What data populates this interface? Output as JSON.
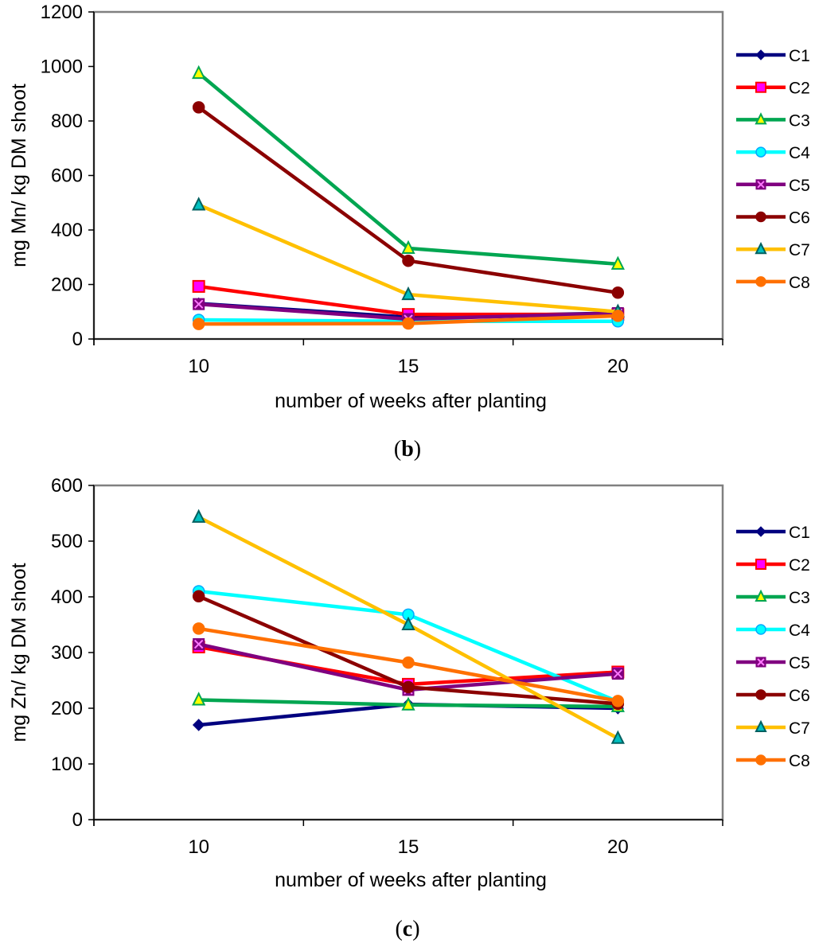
{
  "chart_data": [
    {
      "type": "line",
      "panel_label": {
        "open": "(",
        "letter": "b",
        "close": ")"
      },
      "title": "",
      "xlabel": "number of weeks after planting",
      "ylabel": "mg Mn/ kg DM shoot",
      "x": [
        10,
        15,
        20
      ],
      "xlim": [
        7.5,
        22.5
      ],
      "ylim": [
        0,
        1200
      ],
      "yticks": [
        0,
        200,
        400,
        600,
        800,
        1000,
        1200
      ],
      "xticks": [
        10,
        15,
        20
      ],
      "legend_position": "right",
      "series": [
        {
          "name": "C1",
          "values": [
            130,
            80,
            95
          ],
          "color": "#00007f",
          "marker": "diamond"
        },
        {
          "name": "C2",
          "values": [
            193,
            90,
            90
          ],
          "color": "#ff0000",
          "marker": "square"
        },
        {
          "name": "C3",
          "values": [
            975,
            333,
            275
          ],
          "color": "#00a651",
          "marker": "triangle"
        },
        {
          "name": "C4",
          "values": [
            70,
            65,
            65
          ],
          "color": "#00ffff",
          "marker": "circle"
        },
        {
          "name": "C5",
          "values": [
            128,
            73,
            95
          ],
          "color": "#800080",
          "marker": "x-square"
        },
        {
          "name": "C6",
          "values": [
            850,
            287,
            170
          ],
          "color": "#8b0000",
          "marker": "circle"
        },
        {
          "name": "C7",
          "values": [
            492,
            163,
            100
          ],
          "color": "#ffc000",
          "marker": "triangle"
        },
        {
          "name": "C8",
          "values": [
            55,
            57,
            85
          ],
          "color": "#ff7000",
          "marker": "circle"
        }
      ]
    },
    {
      "type": "line",
      "panel_label": {
        "open": "(",
        "letter": "c",
        "close": ")"
      },
      "title": "",
      "xlabel": "number of weeks after planting",
      "ylabel": "mg Zn/ kg DM shoot",
      "x": [
        10,
        15,
        20
      ],
      "xlim": [
        7.5,
        22.5
      ],
      "ylim": [
        0,
        600
      ],
      "yticks": [
        0,
        100,
        200,
        300,
        400,
        500,
        600
      ],
      "xticks": [
        10,
        15,
        20
      ],
      "legend_position": "right",
      "series": [
        {
          "name": "C1",
          "values": [
            170,
            207,
            200
          ],
          "color": "#00007f",
          "marker": "diamond"
        },
        {
          "name": "C2",
          "values": [
            310,
            243,
            265
          ],
          "color": "#ff0000",
          "marker": "square"
        },
        {
          "name": "C3",
          "values": [
            215,
            206,
            203
          ],
          "color": "#00a651",
          "marker": "triangle"
        },
        {
          "name": "C4",
          "values": [
            410,
            368,
            212
          ],
          "color": "#00ffff",
          "marker": "circle"
        },
        {
          "name": "C5",
          "values": [
            315,
            233,
            262
          ],
          "color": "#800080",
          "marker": "x-square"
        },
        {
          "name": "C6",
          "values": [
            401,
            238,
            208
          ],
          "color": "#8b0000",
          "marker": "circle"
        },
        {
          "name": "C7",
          "values": [
            543,
            350,
            146
          ],
          "color": "#ffc000",
          "marker": "triangle"
        },
        {
          "name": "C8",
          "values": [
            343,
            282,
            213
          ],
          "color": "#ff7000",
          "marker": "circle"
        }
      ]
    }
  ]
}
